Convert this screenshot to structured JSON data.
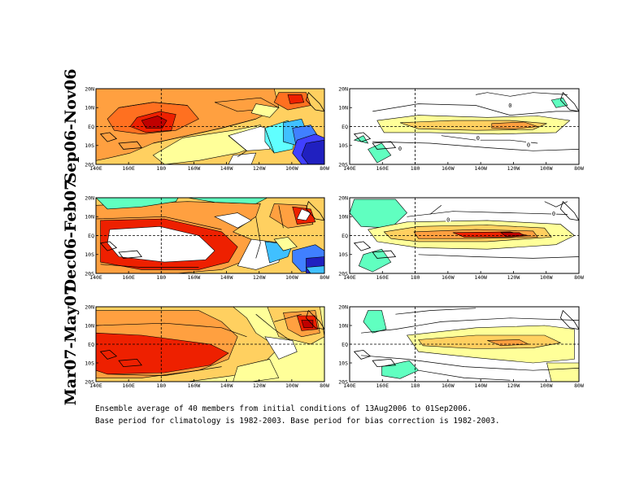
{
  "chart_data": [
    {
      "type": "heatmap",
      "row_label": "Sep06-Nov06",
      "x_ticks": [
        "140E",
        "160E",
        "180",
        "160W",
        "140W",
        "120W",
        "100W",
        "80W"
      ],
      "y_ticks": [
        "20N",
        "10N",
        "EQ",
        "10S",
        "20S"
      ],
      "contour_labels": [],
      "colors": [
        "#2020c0",
        "#4040ff",
        "#4080ff",
        "#40c0ff",
        "#60ffff",
        "#ffffff",
        "#ffff99",
        "#ffd060",
        "#ffa040",
        "#ff7020",
        "#ee2000",
        "#c00000"
      ]
    },
    {
      "type": "heatmap",
      "row_label": "Sep06-Nov06",
      "x_ticks": [
        "140E",
        "160E",
        "180",
        "160W",
        "140W",
        "120W",
        "100W",
        "80W"
      ],
      "y_ticks": [
        "20N",
        "10N",
        "EQ",
        "10S",
        "20S"
      ],
      "contour_labels": [
        "0",
        "0",
        "0",
        "0"
      ],
      "colors": [
        "#60ffc0",
        "#ffffff",
        "#ffff99",
        "#ffd060",
        "#ffa040",
        "#ee2000"
      ]
    },
    {
      "type": "heatmap",
      "row_label": "Dec06-Feb07",
      "x_ticks": [
        "140E",
        "160E",
        "180",
        "160W",
        "140W",
        "120W",
        "100W",
        "80W"
      ],
      "y_ticks": [
        "20N",
        "10N",
        "EQ",
        "10S",
        "20S"
      ],
      "contour_labels": [],
      "colors": [
        "#2020c0",
        "#4080ff",
        "#40c0ff",
        "#60ffc0",
        "#ffffff",
        "#ffff99",
        "#ffd060",
        "#ffa040",
        "#ee2000"
      ]
    },
    {
      "type": "heatmap",
      "row_label": "Dec06-Feb07",
      "x_ticks": [
        "140E",
        "160E",
        "180",
        "160W",
        "140W",
        "120W",
        "100W",
        "80W"
      ],
      "y_ticks": [
        "20N",
        "10N",
        "EQ",
        "10S",
        "20S"
      ],
      "contour_labels": [
        "0",
        "0"
      ],
      "colors": [
        "#60ffc0",
        "#ffffff",
        "#ffff99",
        "#ffd060",
        "#ffa040",
        "#ee2000",
        "#c00000"
      ]
    },
    {
      "type": "heatmap",
      "row_label": "Mar07-May07",
      "x_ticks": [
        "140E",
        "160E",
        "180",
        "160W",
        "140W",
        "120W",
        "100W",
        "80W"
      ],
      "y_ticks": [
        "20N",
        "10N",
        "EQ",
        "10S",
        "20S"
      ],
      "contour_labels": [],
      "colors": [
        "#ffffff",
        "#ffff99",
        "#ffd060",
        "#ffa040",
        "#ee2000",
        "#c00000"
      ]
    },
    {
      "type": "heatmap",
      "row_label": "Mar07-May07",
      "x_ticks": [
        "140E",
        "160E",
        "180",
        "160W",
        "140W",
        "120W",
        "100W",
        "80W"
      ],
      "y_ticks": [
        "20N",
        "10N",
        "EQ",
        "10S",
        "20S"
      ],
      "contour_labels": [],
      "colors": [
        "#60ffc0",
        "#ffffff",
        "#ffff99",
        "#ffd060",
        "#ffa040"
      ]
    }
  ],
  "rows": [
    {
      "label": "Sep06-Nov06"
    },
    {
      "label": "Dec06-Feb07"
    },
    {
      "label": "Mar07-May07"
    }
  ],
  "caption": {
    "line1": "Ensemble average of 40 members from initial conditions of 13Aug2006 to 01Sep2006.",
    "line2": "Base period for climatology is 1982-2003. Base period for bias correction is 1982-2003."
  }
}
